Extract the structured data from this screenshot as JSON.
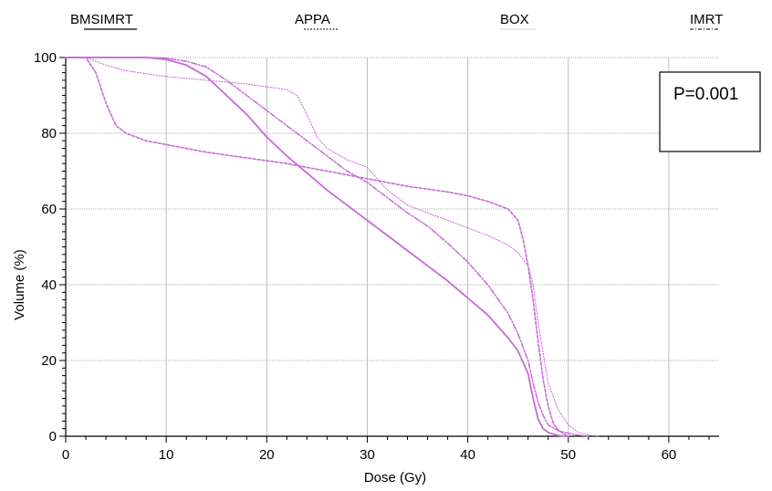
{
  "chart_data": {
    "type": "line",
    "xlabel": "Dose (Gy)",
    "ylabel": "Volume (%)",
    "xlim": [
      0,
      65
    ],
    "ylim": [
      0,
      100
    ],
    "xticks": [
      0,
      10,
      20,
      30,
      40,
      50,
      60
    ],
    "yticks": [
      0,
      20,
      40,
      60,
      80,
      100
    ],
    "grid": true,
    "legend_position": "top",
    "annotation": "P=0.001",
    "line_color": "#c86ad6",
    "series": [
      {
        "name": "BMSIMRT",
        "dash": "solid",
        "x": [
          0,
          6,
          8,
          10,
          12,
          14,
          16,
          18,
          20,
          22,
          24,
          26,
          28,
          30,
          32,
          34,
          36,
          38,
          40,
          42,
          44,
          45,
          46,
          46.5,
          47,
          47.5,
          48,
          49,
          50
        ],
        "y": [
          100,
          100,
          100,
          99.5,
          98,
          95,
          90,
          85,
          79,
          74,
          69.5,
          65,
          61,
          57,
          53,
          49,
          45,
          41,
          36.5,
          32,
          26,
          22.5,
          16.5,
          10,
          4.5,
          2,
          1,
          0.2,
          0
        ]
      },
      {
        "name": "APPA",
        "dash": "dash",
        "x": [
          0,
          2,
          3,
          4,
          5,
          6,
          8,
          10,
          14,
          18,
          22,
          26,
          30,
          34,
          38,
          40,
          42,
          43,
          44,
          45,
          45.5,
          46,
          46.5,
          47,
          47.5,
          48,
          48.5,
          49,
          50
        ],
        "y": [
          100,
          100,
          96,
          88,
          82,
          80,
          78,
          77,
          75,
          73.5,
          72,
          70,
          68,
          66,
          64.5,
          63.5,
          62,
          61,
          60,
          57,
          52,
          45,
          36,
          25,
          15,
          8,
          3.5,
          1.5,
          0
        ]
      },
      {
        "name": "BOX",
        "dash": "dot",
        "x": [
          0,
          2,
          4,
          6,
          10,
          14,
          18,
          22,
          23,
          24,
          25,
          26,
          28,
          30,
          32,
          34,
          38,
          42,
          44,
          45,
          46,
          46.5,
          47,
          47.5,
          48,
          49,
          50,
          51,
          52,
          53
        ],
        "y": [
          100,
          100,
          98,
          96.5,
          95,
          94,
          93,
          91.5,
          90,
          85,
          79,
          76,
          73,
          71,
          65,
          61,
          57,
          53,
          50.5,
          48.5,
          45,
          40,
          30,
          22,
          14,
          7,
          3,
          1,
          0.3,
          0
        ]
      },
      {
        "name": "IMRT",
        "dash": "dashdot",
        "x": [
          0,
          6,
          8,
          10,
          12,
          14,
          16,
          18,
          20,
          22,
          24,
          26,
          28,
          30,
          32,
          34,
          36,
          38,
          40,
          42,
          44,
          45,
          46,
          46.5,
          47,
          47.5,
          48,
          49,
          50,
          51,
          52
        ],
        "y": [
          100,
          100,
          100,
          99.8,
          99,
          97.5,
          94,
          90,
          86,
          82,
          78,
          74,
          70,
          67,
          63,
          59,
          55.5,
          51,
          46,
          40,
          32.5,
          27,
          20,
          14,
          9,
          5.5,
          3,
          1.5,
          0.8,
          0.3,
          0
        ]
      }
    ]
  }
}
